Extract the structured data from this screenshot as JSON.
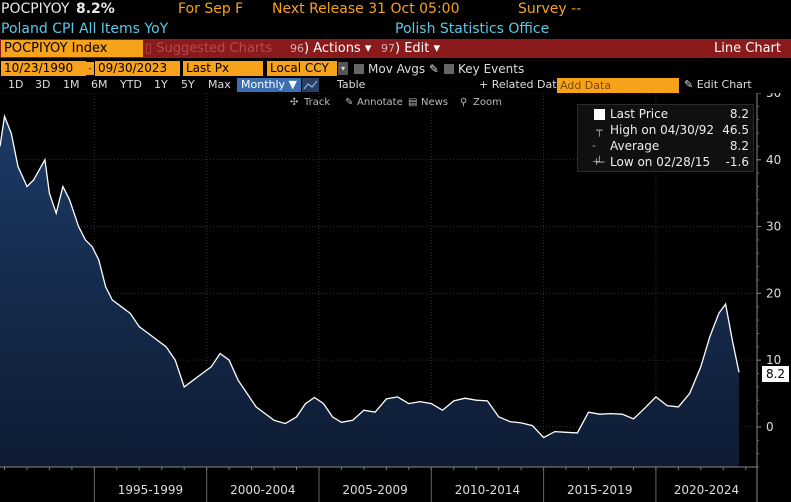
{
  "header": {
    "ticker": "POCPIYOY",
    "last": "8.2%",
    "for_label": "For Sep F",
    "next_release": "Next Release 31 Oct 05:00",
    "survey": "Survey --",
    "description": "Poland CPI All Items YoY",
    "source": "Polish Statistics Office"
  },
  "toolbar": {
    "security": "POCPIYOY Index",
    "suggested": "Suggested Charts",
    "actions_num": "96",
    "actions_label": "Actions",
    "edit_num": "97",
    "edit_label": "Edit",
    "chart_type": "Line Chart"
  },
  "settings": {
    "start_date": "10/23/1990",
    "end_date": "09/30/2023",
    "field": "Last Px",
    "currency": "Local CCY",
    "mov_avgs": "Mov Avgs",
    "key_events": "Key Events"
  },
  "periods": {
    "items": [
      "1D",
      "3D",
      "1M",
      "6M",
      "YTD",
      "1Y",
      "5Y",
      "Max"
    ],
    "frequency": "Monthly",
    "table": "Table",
    "related": "+ Related Dat",
    "add_data": "Add Data",
    "edit_chart": "Edit Chart"
  },
  "chart_tools": {
    "track": "Track",
    "annotate": "Annotate",
    "news": "News",
    "zoom": "Zoom"
  },
  "legend": {
    "last_price_label": "Last Price",
    "last_price_value": "8.2",
    "high_label": "High on 04/30/92",
    "high_value": "46.5",
    "average_label": "Average",
    "average_value": "8.2",
    "low_label": "Low on 02/28/15",
    "low_value": "-1.6"
  },
  "last_value_label": "8.2",
  "colors": {
    "line": "#ffffff",
    "area_top": "#1c3a66",
    "area_bottom": "#0e1b33",
    "grid": "#303030",
    "accent_orange": "#f7a21b",
    "toolbar_red": "#8b1a1d"
  },
  "chart_data": {
    "type": "area",
    "ylim": [
      -6,
      50
    ],
    "y_ticks": [
      0,
      10,
      20,
      30,
      40,
      50
    ],
    "x_ticks": [
      "1995-1999",
      "2000-2004",
      "2005-2009",
      "2010-2014",
      "2015-2019",
      "2020-2024"
    ],
    "x_range": [
      1990.8,
      2024.5
    ],
    "grid": true,
    "series": [
      {
        "x": [
          1990.8,
          1991.0,
          1991.3,
          1991.6,
          1992.0,
          1992.3,
          1992.8,
          1993.0,
          1993.3,
          1993.6,
          1993.9,
          1994.3,
          1994.6,
          1994.9,
          1995.2,
          1995.5,
          1995.8,
          1996.2,
          1996.6,
          1997.0,
          1997.4,
          1997.8,
          1998.2,
          1998.6,
          1999.0,
          1999.4,
          1999.8,
          2000.2,
          2000.6,
          2001.0,
          2001.4,
          2001.8,
          2002.2,
          2002.6,
          2003.0,
          2003.5,
          2004.0,
          2004.4,
          2004.8,
          2005.2,
          2005.6,
          2006.0,
          2006.5,
          2007.0,
          2007.5,
          2008.0,
          2008.5,
          2009.0,
          2009.5,
          2010.0,
          2010.5,
          2011.0,
          2011.5,
          2012.0,
          2012.5,
          2013.0,
          2013.5,
          2014.0,
          2014.5,
          2015.0,
          2015.5,
          2016.0,
          2016.5,
          2017.0,
          2017.5,
          2018.0,
          2018.5,
          2019.0,
          2019.5,
          2020.0,
          2020.5,
          2021.0,
          2021.5,
          2022.0,
          2022.4,
          2022.8,
          2023.1,
          2023.4,
          2023.7
        ],
        "values": [
          42,
          46.5,
          44,
          39,
          36,
          37,
          40,
          35,
          32,
          36,
          34,
          30,
          28,
          27,
          25,
          21,
          19,
          18,
          17,
          15,
          14,
          13,
          12,
          10,
          6,
          7,
          8,
          9,
          11,
          10,
          7,
          5,
          3,
          2,
          1,
          0.5,
          1.5,
          3.5,
          4.4,
          3.5,
          1.5,
          0.7,
          1,
          2.5,
          2.2,
          4.2,
          4.5,
          3.5,
          3.8,
          3.5,
          2.5,
          3.9,
          4.3,
          4.0,
          3.9,
          1.5,
          0.8,
          0.6,
          0.2,
          -1.6,
          -0.7,
          -0.8,
          -0.9,
          2.2,
          1.9,
          2.0,
          1.9,
          1.2,
          2.8,
          4.5,
          3.2,
          3.0,
          5.0,
          9.0,
          13.5,
          17.0,
          18.4,
          13.0,
          8.2
        ]
      }
    ]
  }
}
